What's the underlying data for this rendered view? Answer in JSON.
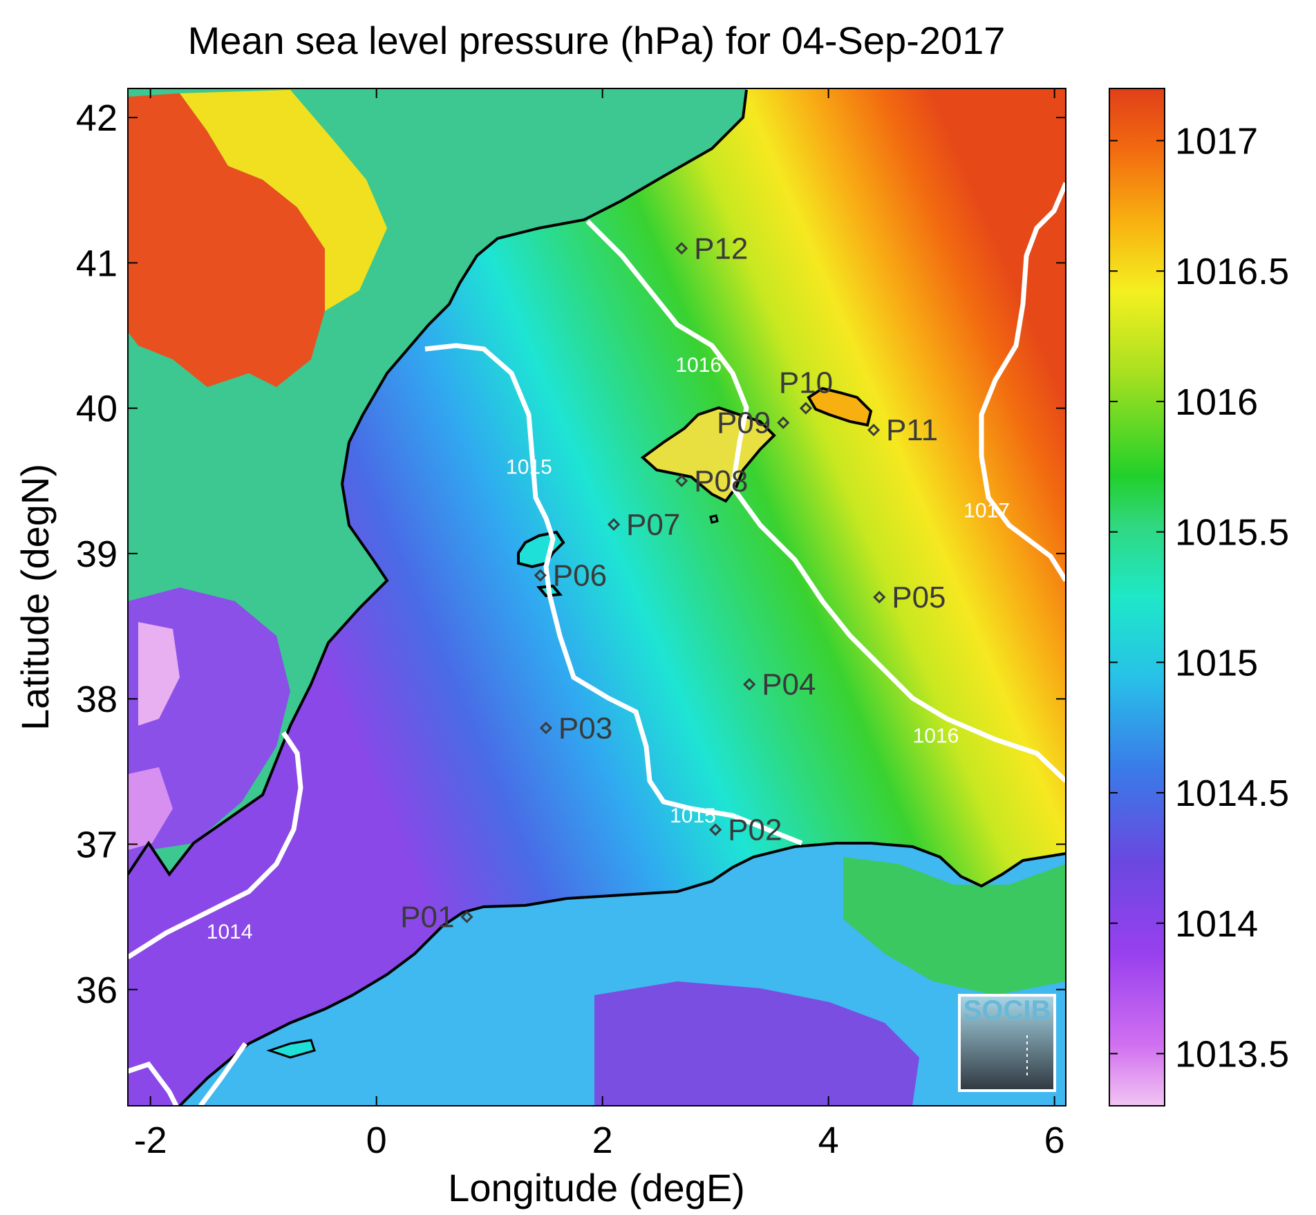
{
  "figure": {
    "title": "Mean sea level pressure (hPa) for 04-Sep-2017",
    "xlabel": "Longitude (degE)",
    "ylabel": "Latitude (degN)",
    "logo_text": "SOCIB"
  },
  "map": {
    "xlim": [
      -2.2,
      6.1
    ],
    "ylim": [
      35.2,
      42.2
    ],
    "xticks": [
      {
        "value": -2,
        "label": "-2"
      },
      {
        "value": 0,
        "label": "0"
      },
      {
        "value": 2,
        "label": "2"
      },
      {
        "value": 4,
        "label": "4"
      },
      {
        "value": 6,
        "label": "6"
      }
    ],
    "yticks": [
      {
        "value": 36,
        "label": "36"
      },
      {
        "value": 37,
        "label": "37"
      },
      {
        "value": 38,
        "label": "38"
      },
      {
        "value": 39,
        "label": "39"
      },
      {
        "value": 40,
        "label": "40"
      },
      {
        "value": 41,
        "label": "41"
      },
      {
        "value": 42,
        "label": "42"
      }
    ],
    "stations": [
      {
        "name": "P01",
        "lon": 0.8,
        "lat": 36.5,
        "side": "left"
      },
      {
        "name": "P02",
        "lon": 3.0,
        "lat": 37.1,
        "side": "right"
      },
      {
        "name": "P03",
        "lon": 1.5,
        "lat": 37.8,
        "side": "right"
      },
      {
        "name": "P04",
        "lon": 3.3,
        "lat": 38.1,
        "side": "right"
      },
      {
        "name": "P05",
        "lon": 4.45,
        "lat": 38.7,
        "side": "right"
      },
      {
        "name": "P06",
        "lon": 1.45,
        "lat": 38.85,
        "side": "right"
      },
      {
        "name": "P07",
        "lon": 2.1,
        "lat": 39.2,
        "side": "right"
      },
      {
        "name": "P08",
        "lon": 2.7,
        "lat": 39.5,
        "side": "right"
      },
      {
        "name": "P09",
        "lon": 3.6,
        "lat": 39.9,
        "side": "left"
      },
      {
        "name": "P10",
        "lon": 3.8,
        "lat": 40.0,
        "side": "above"
      },
      {
        "name": "P11",
        "lon": 4.4,
        "lat": 39.85,
        "side": "right"
      },
      {
        "name": "P12",
        "lon": 2.7,
        "lat": 41.1,
        "side": "right"
      }
    ],
    "contour_labels": [
      {
        "text": "1014",
        "lon": -1.3,
        "lat": 36.35
      },
      {
        "text": "1015",
        "lon": 1.35,
        "lat": 39.55
      },
      {
        "text": "1015",
        "lon": 2.8,
        "lat": 37.15
      },
      {
        "text": "1016",
        "lon": 2.85,
        "lat": 40.25
      },
      {
        "text": "1016",
        "lon": 4.95,
        "lat": 37.7
      },
      {
        "text": "1017",
        "lon": 5.4,
        "lat": 39.25
      }
    ]
  },
  "colorbar": {
    "min": 1013.3,
    "max": 1017.2,
    "ticks": [
      {
        "value": 1013.5,
        "label": "1013.5"
      },
      {
        "value": 1014,
        "label": "1014"
      },
      {
        "value": 1014.5,
        "label": "1014.5"
      },
      {
        "value": 1015,
        "label": "1015"
      },
      {
        "value": 1015.5,
        "label": "1015.5"
      },
      {
        "value": 1016,
        "label": "1016"
      },
      {
        "value": 1016.5,
        "label": "1016.5"
      },
      {
        "value": 1017,
        "label": "1017"
      }
    ],
    "colors": [
      "#f2c4f2",
      "#c040f0",
      "#7040e0",
      "#3a7ae8",
      "#1ee0d8",
      "#30d070",
      "#22d022",
      "#b8e820",
      "#f0f020",
      "#f8a010",
      "#f06010",
      "#e04018"
    ]
  }
}
